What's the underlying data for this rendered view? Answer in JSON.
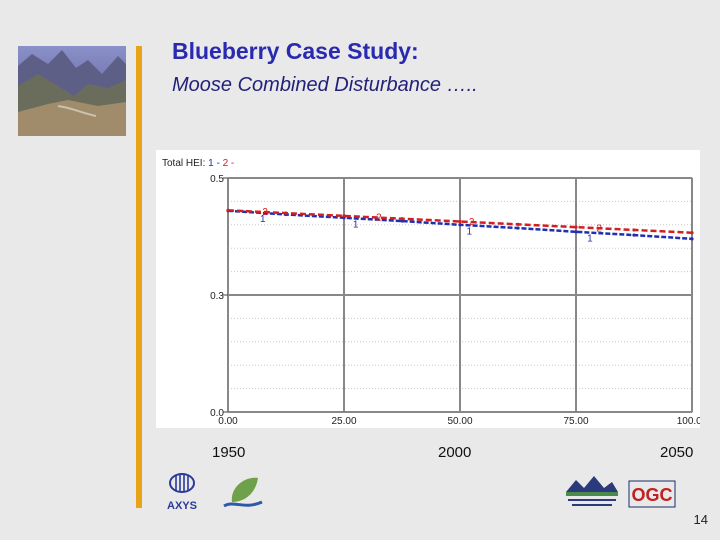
{
  "slide": {
    "title": "Blueberry Case Study:",
    "subtitle": "Moose Combined Disturbance …..",
    "page_number": "14",
    "year_labels": [
      "1950",
      "2000",
      "2050"
    ],
    "accent_color": "#e8a317"
  },
  "images": {
    "photo": "mountain-valley-photo",
    "logos": [
      "axys-logo",
      "leaf-stream-logo",
      "northern-rockies-logo",
      "ogc-logo"
    ]
  },
  "logos": {
    "axys_text": "AXYS",
    "ogc_text": "OGC"
  },
  "chart_data": {
    "type": "line",
    "legend_prefix": "Total HEI:",
    "series": [
      {
        "name": "1",
        "color": "#1f2fb0",
        "marker": "1",
        "x": [
          0,
          12.5,
          25,
          37.5,
          50,
          62.5,
          75,
          87.5,
          100
        ],
        "y": [
          0.43,
          0.422,
          0.415,
          0.408,
          0.4,
          0.393,
          0.385,
          0.378,
          0.37
        ]
      },
      {
        "name": "2",
        "color": "#d02020",
        "marker": "2",
        "x": [
          0,
          12.5,
          25,
          37.5,
          50,
          62.5,
          75,
          87.5,
          100
        ],
        "y": [
          0.431,
          0.425,
          0.419,
          0.413,
          0.407,
          0.401,
          0.395,
          0.389,
          0.383
        ]
      }
    ],
    "marker_x": {
      "1": [
        7.5,
        27.5,
        52.0,
        78.0
      ],
      "2": [
        8.0,
        32.5,
        52.5,
        80.0
      ]
    },
    "xlim": [
      0,
      100
    ],
    "ylim": [
      0,
      0.5
    ],
    "x_ticks": [
      "0.00",
      "25.00",
      "50.00",
      "75.00",
      "100.00"
    ],
    "y_ticks": [
      "0.0",
      "0.3",
      "0.5"
    ],
    "y_tick_values": [
      0,
      0.25,
      0.5
    ],
    "grid": true
  }
}
